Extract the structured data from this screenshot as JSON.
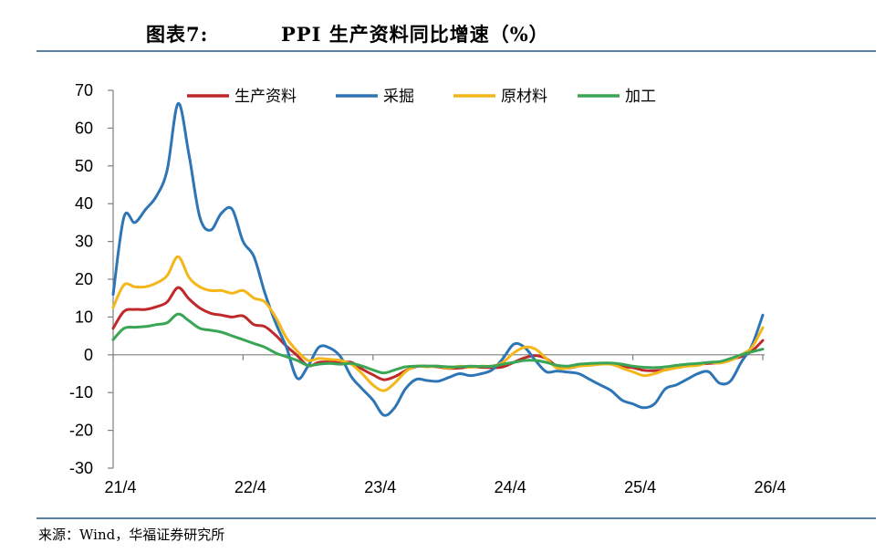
{
  "header": {
    "figure_number": "图表7:",
    "title": "PPI 生产资料同比增速（%）"
  },
  "footer": {
    "source": "来源：Wind，华福证券研究所"
  },
  "chart_data": {
    "type": "line",
    "title": "PPI 生产资料同比增速（%）",
    "xlabel": "",
    "ylabel": "",
    "ylim": [
      -30,
      70
    ],
    "yticks": [
      70,
      60,
      50,
      40,
      30,
      20,
      10,
      0,
      -10,
      -20,
      -30
    ],
    "x_tick_labels": [
      "21/4",
      "22/4",
      "23/4",
      "24/4",
      "25/4",
      "26/4"
    ],
    "x_start": "2021-04",
    "x_end": "2026-04",
    "legend_position": "top",
    "grid": false,
    "series": [
      {
        "name": "生产资料",
        "color": "#c0292b",
        "points": [
          [
            "2021-04",
            7.0
          ],
          [
            "2021-05",
            11.5
          ],
          [
            "2021-06",
            12.0
          ],
          [
            "2021-07",
            12.0
          ],
          [
            "2021-08",
            12.7
          ],
          [
            "2021-09",
            14.0
          ],
          [
            "2021-10",
            17.8
          ],
          [
            "2021-11",
            14.8
          ],
          [
            "2021-12",
            12.4
          ],
          [
            "2022-01",
            11.0
          ],
          [
            "2022-02",
            10.5
          ],
          [
            "2022-03",
            10.0
          ],
          [
            "2022-04",
            10.3
          ],
          [
            "2022-05",
            8.0
          ],
          [
            "2022-06",
            7.5
          ],
          [
            "2022-07",
            5.2
          ],
          [
            "2022-08",
            2.3
          ],
          [
            "2022-09",
            -0.2
          ],
          [
            "2022-10",
            -2.9
          ],
          [
            "2022-11",
            -2.0
          ],
          [
            "2022-12",
            -1.9
          ],
          [
            "2023-01",
            -2.0
          ],
          [
            "2023-02",
            -2.0
          ],
          [
            "2023-03",
            -3.8
          ],
          [
            "2023-04",
            -5.3
          ],
          [
            "2023-05",
            -6.6
          ],
          [
            "2023-06",
            -5.8
          ],
          [
            "2023-07",
            -4.2
          ],
          [
            "2023-08",
            -3.1
          ],
          [
            "2023-09",
            -3.0
          ],
          [
            "2023-10",
            -3.2
          ],
          [
            "2023-11",
            -3.6
          ],
          [
            "2023-12",
            -3.5
          ],
          [
            "2024-01",
            -3.2
          ],
          [
            "2024-02",
            -3.3
          ],
          [
            "2024-03",
            -3.4
          ],
          [
            "2024-04",
            -3.2
          ],
          [
            "2024-05",
            -2.0
          ],
          [
            "2024-06",
            -0.8
          ],
          [
            "2024-07",
            -0.2
          ],
          [
            "2024-08",
            -1.0
          ],
          [
            "2024-09",
            -3.0
          ],
          [
            "2024-10",
            -3.5
          ],
          [
            "2024-11",
            -3.0
          ],
          [
            "2024-12",
            -2.5
          ],
          [
            "2025-01",
            -2.3
          ],
          [
            "2025-02",
            -2.4
          ],
          [
            "2025-03",
            -3.1
          ],
          [
            "2025-04",
            -3.4
          ],
          [
            "2025-05",
            -4.1
          ],
          [
            "2025-06",
            -4.2
          ],
          [
            "2025-07",
            -4.0
          ],
          [
            "2025-08",
            -3.3
          ],
          [
            "2025-09",
            -2.8
          ],
          [
            "2025-10",
            -2.5
          ],
          [
            "2025-11",
            -2.3
          ],
          [
            "2025-12",
            -2.0
          ],
          [
            "2026-01",
            -1.2
          ],
          [
            "2026-02",
            -0.5
          ],
          [
            "2026-03",
            1.0
          ],
          [
            "2026-04",
            3.8
          ]
        ]
      },
      {
        "name": "采掘",
        "color": "#2e75b6",
        "points": [
          [
            "2021-04",
            16.0
          ],
          [
            "2021-05",
            36.5
          ],
          [
            "2021-06",
            35.0
          ],
          [
            "2021-07",
            38.5
          ],
          [
            "2021-08",
            42.0
          ],
          [
            "2021-09",
            49.0
          ],
          [
            "2021-10",
            66.5
          ],
          [
            "2021-11",
            53.0
          ],
          [
            "2021-12",
            36.5
          ],
          [
            "2022-01",
            33.0
          ],
          [
            "2022-02",
            37.5
          ],
          [
            "2022-03",
            38.5
          ],
          [
            "2022-04",
            30.0
          ],
          [
            "2022-05",
            26.0
          ],
          [
            "2022-06",
            16.5
          ],
          [
            "2022-07",
            8.5
          ],
          [
            "2022-08",
            2.0
          ],
          [
            "2022-09",
            -6.2
          ],
          [
            "2022-10",
            -3.0
          ],
          [
            "2022-11",
            2.0
          ],
          [
            "2022-12",
            1.8
          ],
          [
            "2023-01",
            -0.5
          ],
          [
            "2023-02",
            -5.8
          ],
          [
            "2023-03",
            -9.0
          ],
          [
            "2023-04",
            -12.0
          ],
          [
            "2023-05",
            -16.0
          ],
          [
            "2023-06",
            -14.0
          ],
          [
            "2023-07",
            -9.0
          ],
          [
            "2023-08",
            -6.5
          ],
          [
            "2023-09",
            -6.8
          ],
          [
            "2023-10",
            -7.0
          ],
          [
            "2023-11",
            -6.0
          ],
          [
            "2023-12",
            -5.0
          ],
          [
            "2024-01",
            -5.5
          ],
          [
            "2024-02",
            -5.0
          ],
          [
            "2024-03",
            -4.0
          ],
          [
            "2024-04",
            -1.0
          ],
          [
            "2024-05",
            2.8
          ],
          [
            "2024-06",
            2.0
          ],
          [
            "2024-07",
            -1.5
          ],
          [
            "2024-08",
            -4.5
          ],
          [
            "2024-09",
            -4.3
          ],
          [
            "2024-10",
            -4.6
          ],
          [
            "2024-11",
            -5.0
          ],
          [
            "2024-12",
            -6.5
          ],
          [
            "2025-01",
            -8.0
          ],
          [
            "2025-02",
            -9.5
          ],
          [
            "2025-03",
            -12.0
          ],
          [
            "2025-04",
            -13.0
          ],
          [
            "2025-05",
            -14.0
          ],
          [
            "2025-06",
            -13.0
          ],
          [
            "2025-07",
            -9.0
          ],
          [
            "2025-08",
            -8.0
          ],
          [
            "2025-09",
            -6.5
          ],
          [
            "2025-10",
            -5.0
          ],
          [
            "2025-11",
            -4.5
          ],
          [
            "2025-12",
            -7.5
          ],
          [
            "2026-01",
            -7.0
          ],
          [
            "2026-02",
            -2.0
          ],
          [
            "2026-03",
            2.5
          ],
          [
            "2026-04",
            10.5
          ]
        ]
      },
      {
        "name": "原材料",
        "color": "#f4b619",
        "points": [
          [
            "2021-04",
            12.5
          ],
          [
            "2021-05",
            18.5
          ],
          [
            "2021-06",
            18.0
          ],
          [
            "2021-07",
            18.0
          ],
          [
            "2021-08",
            19.0
          ],
          [
            "2021-09",
            21.0
          ],
          [
            "2021-10",
            26.0
          ],
          [
            "2021-11",
            20.5
          ],
          [
            "2021-12",
            18.0
          ],
          [
            "2022-01",
            17.0
          ],
          [
            "2022-02",
            17.0
          ],
          [
            "2022-03",
            16.3
          ],
          [
            "2022-04",
            17.0
          ],
          [
            "2022-05",
            15.0
          ],
          [
            "2022-06",
            14.0
          ],
          [
            "2022-07",
            10.0
          ],
          [
            "2022-08",
            4.5
          ],
          [
            "2022-09",
            1.0
          ],
          [
            "2022-10",
            -1.5
          ],
          [
            "2022-11",
            -1.0
          ],
          [
            "2022-12",
            -1.2
          ],
          [
            "2023-01",
            -1.5
          ],
          [
            "2023-02",
            -2.5
          ],
          [
            "2023-03",
            -5.0
          ],
          [
            "2023-04",
            -8.0
          ],
          [
            "2023-05",
            -9.5
          ],
          [
            "2023-06",
            -7.5
          ],
          [
            "2023-07",
            -4.5
          ],
          [
            "2023-08",
            -3.0
          ],
          [
            "2023-09",
            -3.2
          ],
          [
            "2023-10",
            -3.0
          ],
          [
            "2023-11",
            -3.5
          ],
          [
            "2023-12",
            -3.0
          ],
          [
            "2024-01",
            -3.3
          ],
          [
            "2024-02",
            -3.0
          ],
          [
            "2024-03",
            -3.0
          ],
          [
            "2024-04",
            -2.0
          ],
          [
            "2024-05",
            0.5
          ],
          [
            "2024-06",
            2.0
          ],
          [
            "2024-07",
            1.5
          ],
          [
            "2024-08",
            -1.0
          ],
          [
            "2024-09",
            -3.5
          ],
          [
            "2024-10",
            -3.5
          ],
          [
            "2024-11",
            -3.0
          ],
          [
            "2024-12",
            -2.8
          ],
          [
            "2025-01",
            -2.5
          ],
          [
            "2025-02",
            -2.5
          ],
          [
            "2025-03",
            -3.5
          ],
          [
            "2025-04",
            -4.5
          ],
          [
            "2025-05",
            -5.5
          ],
          [
            "2025-06",
            -5.0
          ],
          [
            "2025-07",
            -4.0
          ],
          [
            "2025-08",
            -3.5
          ],
          [
            "2025-09",
            -3.0
          ],
          [
            "2025-10",
            -2.8
          ],
          [
            "2025-11",
            -2.0
          ],
          [
            "2025-12",
            -2.2
          ],
          [
            "2026-01",
            -1.5
          ],
          [
            "2026-02",
            0.0
          ],
          [
            "2026-03",
            2.0
          ],
          [
            "2026-04",
            7.2
          ]
        ]
      },
      {
        "name": "加工",
        "color": "#3aa655",
        "points": [
          [
            "2021-04",
            4.0
          ],
          [
            "2021-05",
            7.0
          ],
          [
            "2021-06",
            7.3
          ],
          [
            "2021-07",
            7.5
          ],
          [
            "2021-08",
            8.0
          ],
          [
            "2021-09",
            8.5
          ],
          [
            "2021-10",
            10.8
          ],
          [
            "2021-11",
            9.0
          ],
          [
            "2021-12",
            7.0
          ],
          [
            "2022-01",
            6.5
          ],
          [
            "2022-02",
            6.0
          ],
          [
            "2022-03",
            5.0
          ],
          [
            "2022-04",
            4.0
          ],
          [
            "2022-05",
            3.0
          ],
          [
            "2022-06",
            2.0
          ],
          [
            "2022-07",
            0.5
          ],
          [
            "2022-08",
            -0.5
          ],
          [
            "2022-09",
            -1.5
          ],
          [
            "2022-10",
            -2.8
          ],
          [
            "2022-11",
            -2.5
          ],
          [
            "2022-12",
            -2.3
          ],
          [
            "2023-01",
            -2.5
          ],
          [
            "2023-02",
            -2.3
          ],
          [
            "2023-03",
            -3.0
          ],
          [
            "2023-04",
            -4.0
          ],
          [
            "2023-05",
            -4.8
          ],
          [
            "2023-06",
            -4.0
          ],
          [
            "2023-07",
            -3.2
          ],
          [
            "2023-08",
            -3.0
          ],
          [
            "2023-09",
            -3.0
          ],
          [
            "2023-10",
            -3.0
          ],
          [
            "2023-11",
            -3.2
          ],
          [
            "2023-12",
            -3.2
          ],
          [
            "2024-01",
            -3.0
          ],
          [
            "2024-02",
            -3.1
          ],
          [
            "2024-03",
            -3.0
          ],
          [
            "2024-04",
            -2.5
          ],
          [
            "2024-05",
            -2.0
          ],
          [
            "2024-06",
            -1.5
          ],
          [
            "2024-07",
            -1.5
          ],
          [
            "2024-08",
            -2.0
          ],
          [
            "2024-09",
            -2.8
          ],
          [
            "2024-10",
            -3.0
          ],
          [
            "2024-11",
            -2.5
          ],
          [
            "2024-12",
            -2.3
          ],
          [
            "2025-01",
            -2.2
          ],
          [
            "2025-02",
            -2.2
          ],
          [
            "2025-03",
            -2.5
          ],
          [
            "2025-04",
            -3.0
          ],
          [
            "2025-05",
            -3.3
          ],
          [
            "2025-06",
            -3.4
          ],
          [
            "2025-07",
            -3.2
          ],
          [
            "2025-08",
            -2.8
          ],
          [
            "2025-09",
            -2.5
          ],
          [
            "2025-10",
            -2.3
          ],
          [
            "2025-11",
            -2.0
          ],
          [
            "2025-12",
            -1.8
          ],
          [
            "2026-01",
            -1.0
          ],
          [
            "2026-02",
            0.0
          ],
          [
            "2026-03",
            0.8
          ],
          [
            "2026-04",
            1.5
          ]
        ]
      }
    ]
  }
}
